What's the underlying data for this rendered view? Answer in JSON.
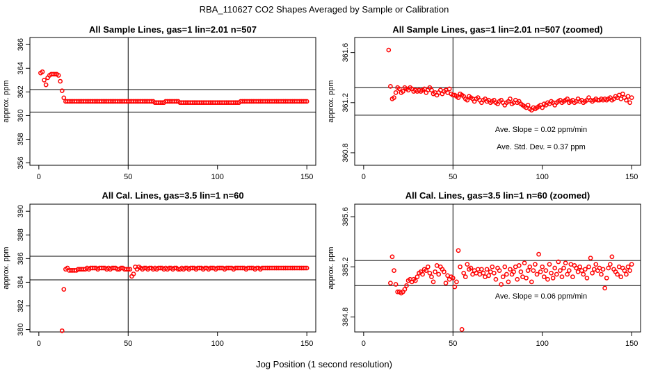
{
  "figure": {
    "title": "RBA_110627  CO2 Shapes Averaged by Sample or Calibration",
    "xlabel": "Jog Position (1 second resolution)"
  },
  "chart_data": [
    {
      "type": "scatter",
      "title": "All Sample Lines, gas=1 lin=2.01 n=507",
      "ylabel": "approx. ppm",
      "xlim": [
        -5,
        155
      ],
      "ylim": [
        355.8,
        366.6
      ],
      "xticks": [
        0,
        50,
        100,
        150
      ],
      "yticks": [
        356,
        358,
        360,
        362,
        364,
        366
      ],
      "color": "#ff0000",
      "vline": 50,
      "hlines": [
        362.2,
        360.3
      ],
      "notes": [],
      "x": [
        1,
        2,
        3,
        4,
        5,
        6,
        7,
        8,
        9,
        10,
        11,
        12,
        13,
        14,
        15,
        16,
        17,
        18,
        19,
        20,
        21,
        22,
        23,
        24,
        25,
        26,
        27,
        28,
        29,
        30,
        31,
        32,
        33,
        34,
        35,
        36,
        37,
        38,
        39,
        40,
        41,
        42,
        43,
        44,
        45,
        46,
        47,
        48,
        49,
        50,
        51,
        52,
        53,
        54,
        55,
        56,
        57,
        58,
        59,
        60,
        61,
        62,
        63,
        64,
        65,
        66,
        67,
        68,
        69,
        70,
        71,
        72,
        73,
        74,
        75,
        76,
        77,
        78,
        79,
        80,
        81,
        82,
        83,
        84,
        85,
        86,
        87,
        88,
        89,
        90,
        91,
        92,
        93,
        94,
        95,
        96,
        97,
        98,
        99,
        100,
        101,
        102,
        103,
        104,
        105,
        106,
        107,
        108,
        109,
        110,
        111,
        112,
        113,
        114,
        115,
        116,
        117,
        118,
        119,
        120,
        121,
        122,
        123,
        124,
        125,
        126,
        127,
        128,
        129,
        130,
        131,
        132,
        133,
        134,
        135,
        136,
        137,
        138,
        139,
        140,
        141,
        142,
        143,
        144,
        145,
        146,
        147,
        148,
        149,
        150
      ],
      "y": [
        363.6,
        363.7,
        363.0,
        362.6,
        363.2,
        363.4,
        363.5,
        363.5,
        363.5,
        363.5,
        363.4,
        362.9,
        362.1,
        361.5,
        361.2,
        361.2,
        361.2,
        361.2,
        361.2,
        361.2,
        361.2,
        361.2,
        361.2,
        361.2,
        361.2,
        361.2,
        361.2,
        361.2,
        361.2,
        361.2,
        361.2,
        361.2,
        361.2,
        361.2,
        361.2,
        361.2,
        361.2,
        361.2,
        361.2,
        361.2,
        361.2,
        361.2,
        361.2,
        361.2,
        361.2,
        361.2,
        361.2,
        361.2,
        361.2,
        361.2,
        361.2,
        361.2,
        361.2,
        361.2,
        361.2,
        361.2,
        361.2,
        361.2,
        361.2,
        361.2,
        361.2,
        361.2,
        361.2,
        361.2,
        361.1,
        361.1,
        361.1,
        361.1,
        361.1,
        361.1,
        361.2,
        361.2,
        361.2,
        361.2,
        361.2,
        361.2,
        361.2,
        361.2,
        361.1,
        361.1,
        361.1,
        361.1,
        361.1,
        361.1,
        361.1,
        361.1,
        361.1,
        361.1,
        361.1,
        361.1,
        361.1,
        361.1,
        361.1,
        361.1,
        361.1,
        361.1,
        361.1,
        361.1,
        361.1,
        361.1,
        361.1,
        361.1,
        361.1,
        361.1,
        361.1,
        361.1,
        361.1,
        361.1,
        361.1,
        361.1,
        361.1,
        361.1,
        361.2,
        361.2,
        361.2,
        361.2,
        361.2,
        361.2,
        361.2,
        361.2,
        361.2,
        361.2,
        361.2,
        361.2,
        361.2,
        361.2,
        361.2,
        361.2,
        361.2,
        361.2,
        361.2,
        361.2,
        361.2,
        361.2,
        361.2,
        361.2,
        361.2,
        361.2,
        361.2,
        361.2,
        361.2,
        361.2,
        361.2,
        361.2,
        361.2,
        361.2,
        361.2,
        361.2,
        361.2,
        361.2
      ]
    },
    {
      "type": "scatter",
      "title": "All Sample Lines, gas=1 lin=2.01 n=507 (zoomed)",
      "ylabel": "approx. ppm",
      "xlim": [
        -5,
        155
      ],
      "ylim": [
        360.7,
        361.72
      ],
      "xticks": [
        0,
        50,
        100,
        150
      ],
      "yticks": [
        360.8,
        361.2,
        361.6
      ],
      "color": "#ff0000",
      "vline": 50,
      "hlines": [
        361.32,
        361.1
      ],
      "notes": [
        "Ave. Slope =  0.02  ppm/min",
        "Ave. Std. Dev. =  0.37  ppm"
      ],
      "x": [
        14,
        15,
        16,
        17,
        18,
        19,
        20,
        21,
        22,
        23,
        24,
        25,
        26,
        27,
        28,
        29,
        30,
        31,
        32,
        33,
        34,
        35,
        36,
        37,
        38,
        39,
        40,
        41,
        42,
        43,
        44,
        45,
        46,
        47,
        48,
        49,
        50,
        51,
        52,
        53,
        54,
        55,
        56,
        57,
        58,
        59,
        60,
        61,
        62,
        63,
        64,
        65,
        66,
        67,
        68,
        69,
        70,
        71,
        72,
        73,
        74,
        75,
        76,
        77,
        78,
        79,
        80,
        81,
        82,
        83,
        84,
        85,
        86,
        87,
        88,
        89,
        90,
        91,
        92,
        93,
        94,
        95,
        96,
        97,
        98,
        99,
        100,
        101,
        102,
        103,
        104,
        105,
        106,
        107,
        108,
        109,
        110,
        111,
        112,
        113,
        114,
        115,
        116,
        117,
        118,
        119,
        120,
        121,
        122,
        123,
        124,
        125,
        126,
        127,
        128,
        129,
        130,
        131,
        132,
        133,
        134,
        135,
        136,
        137,
        138,
        139,
        140,
        141,
        142,
        143,
        144,
        145,
        146,
        147,
        148,
        149,
        150
      ],
      "y": [
        361.62,
        361.33,
        361.23,
        361.24,
        361.28,
        361.32,
        361.31,
        361.28,
        361.29,
        361.32,
        361.31,
        361.3,
        361.32,
        361.31,
        361.29,
        361.3,
        361.29,
        361.3,
        361.29,
        361.3,
        361.31,
        361.28,
        361.3,
        361.32,
        361.3,
        361.27,
        361.28,
        361.26,
        361.28,
        361.3,
        361.27,
        361.29,
        361.3,
        361.28,
        361.31,
        361.27,
        361.26,
        361.26,
        361.25,
        361.24,
        361.27,
        361.26,
        361.25,
        361.23,
        361.22,
        361.25,
        361.24,
        361.23,
        361.21,
        361.23,
        361.24,
        361.22,
        361.2,
        361.22,
        361.23,
        361.21,
        361.22,
        361.2,
        361.21,
        361.22,
        361.2,
        361.19,
        361.21,
        361.22,
        361.2,
        361.18,
        361.2,
        361.21,
        361.23,
        361.19,
        361.2,
        361.22,
        361.2,
        361.21,
        361.19,
        361.18,
        361.17,
        361.16,
        361.18,
        361.15,
        361.14,
        361.16,
        361.15,
        361.16,
        361.17,
        361.18,
        361.16,
        361.19,
        361.18,
        361.2,
        361.19,
        361.21,
        361.2,
        361.18,
        361.2,
        361.21,
        361.22,
        361.2,
        361.21,
        361.22,
        361.23,
        361.2,
        361.21,
        361.22,
        361.2,
        361.21,
        361.23,
        361.21,
        361.22,
        361.2,
        361.21,
        361.22,
        361.24,
        361.22,
        361.21,
        361.22,
        361.23,
        361.22,
        361.22,
        361.23,
        361.22,
        361.23,
        361.22,
        361.23,
        361.24,
        361.22,
        361.23,
        361.25,
        361.24,
        361.26,
        361.23,
        361.27,
        361.24,
        361.22,
        361.25,
        361.2,
        361.24
      ]
    },
    {
      "type": "scatter",
      "title": "All Cal. Lines, gas=3.5 lin=1 n=60",
      "ylabel": "approx. ppm",
      "xlim": [
        -5,
        155
      ],
      "ylim": [
        379.8,
        390.6
      ],
      "xticks": [
        0,
        50,
        100,
        150
      ],
      "yticks": [
        380,
        382,
        384,
        386,
        388,
        390
      ],
      "color": "#ff0000",
      "vline": 50,
      "hlines": [
        386.2,
        384.2
      ],
      "notes": [],
      "x": [
        13,
        14,
        15,
        16,
        17,
        18,
        19,
        20,
        21,
        22,
        23,
        24,
        25,
        26,
        27,
        28,
        29,
        30,
        31,
        32,
        33,
        34,
        35,
        36,
        37,
        38,
        39,
        40,
        41,
        42,
        43,
        44,
        45,
        46,
        47,
        48,
        49,
        50,
        51,
        52,
        53,
        54,
        55,
        56,
        57,
        58,
        59,
        60,
        61,
        62,
        63,
        64,
        65,
        66,
        67,
        68,
        69,
        70,
        71,
        72,
        73,
        74,
        75,
        76,
        77,
        78,
        79,
        80,
        81,
        82,
        83,
        84,
        85,
        86,
        87,
        88,
        89,
        90,
        91,
        92,
        93,
        94,
        95,
        96,
        97,
        98,
        99,
        100,
        101,
        102,
        103,
        104,
        105,
        106,
        107,
        108,
        109,
        110,
        111,
        112,
        113,
        114,
        115,
        116,
        117,
        118,
        119,
        120,
        121,
        122,
        123,
        124,
        125,
        126,
        127,
        128,
        129,
        130,
        131,
        132,
        133,
        134,
        135,
        136,
        137,
        138,
        139,
        140,
        141,
        142,
        143,
        144,
        145,
        146,
        147,
        148,
        149,
        150
      ],
      "y": [
        379.9,
        383.4,
        385.1,
        385.2,
        385.0,
        385.0,
        385.0,
        385.0,
        385.0,
        385.1,
        385.1,
        385.1,
        385.1,
        385.1,
        385.2,
        385.1,
        385.2,
        385.2,
        385.2,
        385.2,
        385.1,
        385.2,
        385.2,
        385.2,
        385.2,
        385.1,
        385.2,
        385.1,
        385.2,
        385.2,
        385.2,
        385.1,
        385.1,
        385.2,
        385.2,
        385.1,
        385.1,
        385.1,
        385.1,
        384.5,
        384.7,
        385.3,
        385.1,
        385.3,
        385.2,
        385.1,
        385.2,
        385.2,
        385.1,
        385.2,
        385.2,
        385.1,
        385.2,
        385.1,
        385.2,
        385.2,
        385.2,
        385.1,
        385.2,
        385.1,
        385.2,
        385.2,
        385.1,
        385.2,
        385.2,
        385.1,
        385.1,
        385.2,
        385.1,
        385.2,
        385.2,
        385.1,
        385.2,
        385.2,
        385.2,
        385.1,
        385.2,
        385.2,
        385.2,
        385.1,
        385.2,
        385.2,
        385.1,
        385.2,
        385.2,
        385.2,
        385.1,
        385.2,
        385.2,
        385.2,
        385.2,
        385.1,
        385.2,
        385.2,
        385.2,
        385.2,
        385.1,
        385.2,
        385.2,
        385.2,
        385.2,
        385.2,
        385.2,
        385.1,
        385.2,
        385.2,
        385.2,
        385.2,
        385.1,
        385.2,
        385.2,
        385.1,
        385.2,
        385.2,
        385.2,
        385.2,
        385.2,
        385.2,
        385.2,
        385.2,
        385.2,
        385.2,
        385.2,
        385.2,
        385.2,
        385.2,
        385.2,
        385.2,
        385.2,
        385.2,
        385.2,
        385.2,
        385.2,
        385.2,
        385.2,
        385.2,
        385.2,
        385.2
      ]
    },
    {
      "type": "scatter",
      "title": "All Cal. Lines, gas=3.5 lin=1 n=60 (zoomed)",
      "ylabel": "approx. ppm",
      "xlim": [
        -5,
        155
      ],
      "ylim": [
        384.68,
        385.7
      ],
      "xticks": [
        0,
        50,
        100,
        150
      ],
      "yticks": [
        384.8,
        385.2,
        385.6
      ],
      "color": "#ff0000",
      "vline": 50,
      "hlines": [
        385.25,
        385.05
      ],
      "notes": [
        "Ave. Slope =  0.06  ppm/min"
      ],
      "x": [
        15,
        16,
        17,
        18,
        19,
        20,
        21,
        22,
        23,
        24,
        25,
        26,
        27,
        28,
        29,
        30,
        31,
        32,
        33,
        34,
        35,
        36,
        37,
        38,
        39,
        40,
        41,
        42,
        43,
        44,
        45,
        46,
        47,
        48,
        49,
        50,
        51,
        52,
        53,
        54,
        55,
        56,
        57,
        58,
        59,
        60,
        61,
        62,
        63,
        64,
        65,
        66,
        67,
        68,
        69,
        70,
        71,
        72,
        73,
        74,
        75,
        76,
        77,
        78,
        79,
        80,
        81,
        82,
        83,
        84,
        85,
        86,
        87,
        88,
        89,
        90,
        91,
        92,
        93,
        94,
        95,
        96,
        97,
        98,
        99,
        100,
        101,
        102,
        103,
        104,
        105,
        106,
        107,
        108,
        109,
        110,
        111,
        112,
        113,
        114,
        115,
        116,
        117,
        118,
        119,
        120,
        121,
        122,
        123,
        124,
        125,
        126,
        127,
        128,
        129,
        130,
        131,
        132,
        133,
        134,
        135,
        136,
        137,
        138,
        139,
        140,
        141,
        142,
        143,
        144,
        145,
        146,
        147,
        148,
        149,
        150
      ],
      "y": [
        385.07,
        385.28,
        385.17,
        385.06,
        385.0,
        385.0,
        384.99,
        385.0,
        385.02,
        385.05,
        385.09,
        385.1,
        385.08,
        385.1,
        385.09,
        385.12,
        385.15,
        385.16,
        385.14,
        385.18,
        385.17,
        385.2,
        385.15,
        385.12,
        385.08,
        385.16,
        385.21,
        385.14,
        385.2,
        385.18,
        385.16,
        385.07,
        385.13,
        385.1,
        385.12,
        385.11,
        385.04,
        385.08,
        385.33,
        385.2,
        384.7,
        385.15,
        385.12,
        385.22,
        385.18,
        385.19,
        385.14,
        385.17,
        385.15,
        385.18,
        385.14,
        385.18,
        385.15,
        385.12,
        385.18,
        385.13,
        385.16,
        385.2,
        385.15,
        385.1,
        385.19,
        385.17,
        385.06,
        385.12,
        385.2,
        385.14,
        385.08,
        385.18,
        385.14,
        385.16,
        385.2,
        385.1,
        385.21,
        385.16,
        385.12,
        385.23,
        385.11,
        385.17,
        385.2,
        385.08,
        385.17,
        385.22,
        385.14,
        385.3,
        385.16,
        385.2,
        385.12,
        385.17,
        385.1,
        385.22,
        385.15,
        385.11,
        385.19,
        385.14,
        385.24,
        385.17,
        385.12,
        385.19,
        385.23,
        385.14,
        385.17,
        385.22,
        385.12,
        385.21,
        385.19,
        385.16,
        385.2,
        385.17,
        385.14,
        385.18,
        385.11,
        385.2,
        385.27,
        385.15,
        385.18,
        385.22,
        385.17,
        385.19,
        385.14,
        385.18,
        385.03,
        385.11,
        385.19,
        385.22,
        385.28,
        385.18,
        385.16,
        385.14,
        385.2,
        385.12,
        385.19,
        385.17,
        385.14,
        385.2,
        385.17,
        385.22
      ]
    }
  ]
}
